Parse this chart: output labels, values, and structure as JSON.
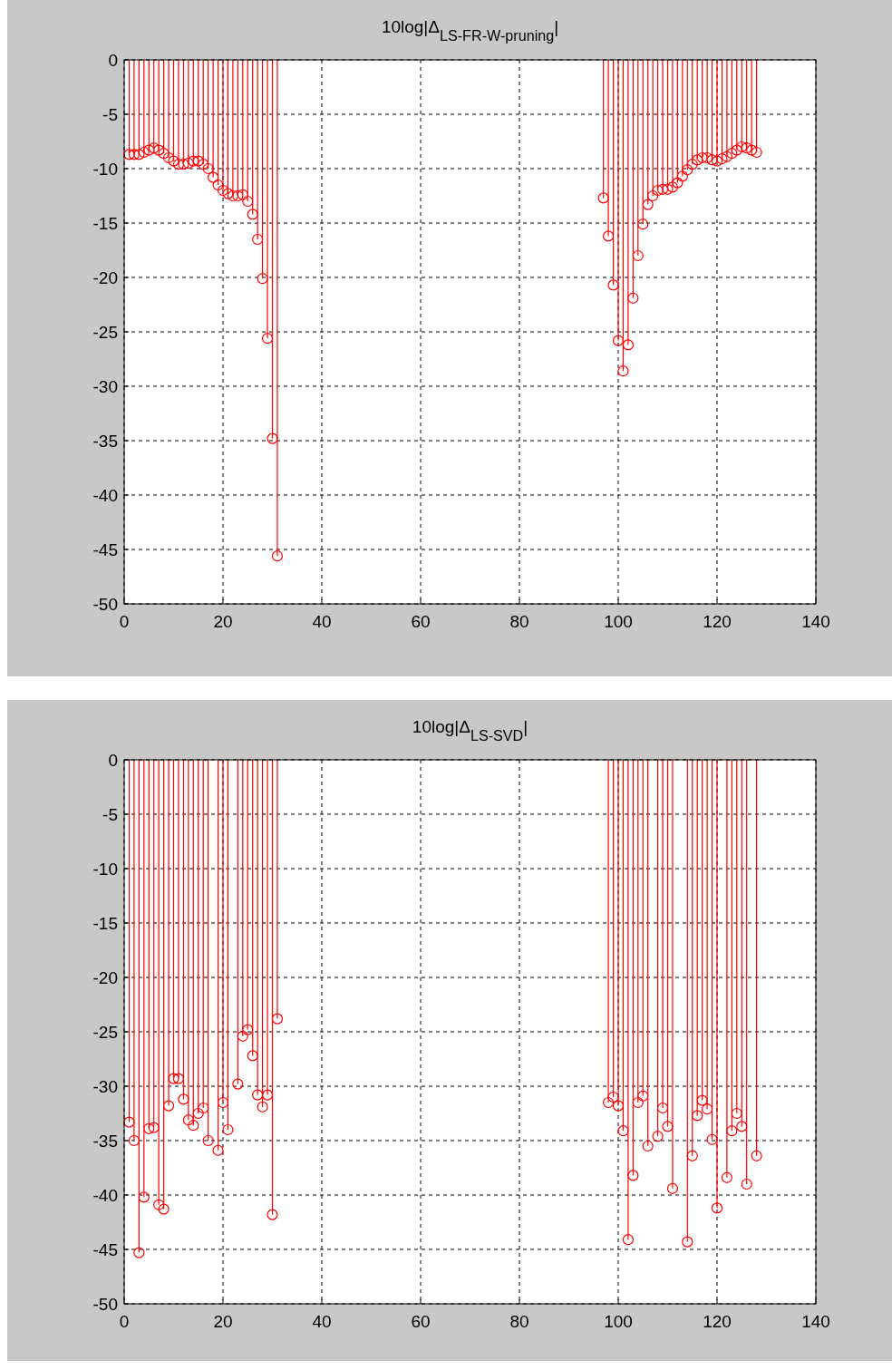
{
  "chart_data": [
    {
      "type": "lollipop",
      "title": "10log|Δ$_{LS-FR-W-pruning}$|",
      "x": [
        1,
        2,
        3,
        4,
        5,
        6,
        7,
        8,
        9,
        10,
        11,
        12,
        13,
        14,
        15,
        16,
        17,
        18,
        19,
        20,
        21,
        22,
        23,
        24,
        25,
        26,
        27,
        28,
        29,
        30,
        31,
        97,
        98,
        99,
        100,
        101,
        102,
        103,
        104,
        105,
        106,
        107,
        108,
        109,
        110,
        111,
        112,
        113,
        114,
        115,
        116,
        117,
        118,
        119,
        120,
        121,
        122,
        123,
        124,
        125,
        126,
        127,
        128
      ],
      "series": [
        {
          "color": "#ff0000",
          "values": [
            -8.7,
            -8.7,
            -8.7,
            -8.5,
            -8.3,
            -8.1,
            -8.3,
            -8.6,
            -9.0,
            -9.3,
            -9.6,
            -9.6,
            -9.5,
            -9.3,
            -9.3,
            -9.6,
            -10.0,
            -10.8,
            -11.5,
            -12.0,
            -12.3,
            -12.5,
            -12.5,
            -12.4,
            -13.0,
            -14.2,
            -16.5,
            -20.1,
            -25.6,
            -34.8,
            -45.6,
            -12.7,
            -16.2,
            -20.7,
            -25.8,
            -28.6,
            -26.2,
            -21.9,
            -18.0,
            -15.1,
            -13.3,
            -12.5,
            -12.0,
            -11.9,
            -11.9,
            -11.7,
            -11.3,
            -10.7,
            -10.1,
            -9.6,
            -9.2,
            -9.0,
            -9.0,
            -9.2,
            -9.3,
            -9.1,
            -8.9,
            -8.6,
            -8.3,
            -8.0,
            -8.1,
            -8.3,
            -8.5
          ]
        }
      ],
      "xlim": [
        0,
        140
      ],
      "xticks": [
        0,
        20,
        40,
        60,
        80,
        100,
        120,
        140
      ],
      "ylim": [
        -50,
        0
      ],
      "yticks": [
        -50,
        -45,
        -40,
        -35,
        -30,
        -25,
        -20,
        -15,
        -10,
        -5,
        0
      ],
      "grid": true,
      "marker": "circle"
    },
    {
      "type": "lollipop",
      "title": "10log|Δ$_{LS-SVD}$|",
      "x": [
        1,
        2,
        3,
        4,
        5,
        6,
        7,
        8,
        9,
        10,
        11,
        12,
        13,
        14,
        15,
        16,
        17,
        19,
        20,
        21,
        23,
        24,
        25,
        26,
        27,
        28,
        29,
        30,
        31,
        98,
        99,
        100,
        101,
        102,
        103,
        104,
        105,
        106,
        108,
        109,
        110,
        111,
        114,
        115,
        116,
        117,
        118,
        119,
        120,
        122,
        123,
        124,
        125,
        126,
        128
      ],
      "series": [
        {
          "color": "#ff0000",
          "values": [
            -33.3,
            -35.0,
            -45.3,
            -40.2,
            -33.9,
            -33.8,
            -40.9,
            -41.3,
            -31.8,
            -29.3,
            -29.3,
            -31.2,
            -33.1,
            -33.6,
            -32.5,
            -32.0,
            -35.0,
            -35.9,
            -31.5,
            -34.0,
            -29.8,
            -25.4,
            -24.8,
            -27.2,
            -30.8,
            -31.9,
            -30.8,
            -41.8,
            -23.8,
            -31.5,
            -31.0,
            -31.8,
            -34.1,
            -44.1,
            -38.2,
            -31.5,
            -30.9,
            -35.5,
            -34.6,
            -32.0,
            -33.7,
            -39.4,
            -44.3,
            -36.4,
            -32.7,
            -31.3,
            -32.1,
            -34.9,
            -41.2,
            -38.4,
            -34.1,
            -32.5,
            -33.7,
            -39.0,
            -36.4
          ]
        }
      ],
      "xlim": [
        0,
        140
      ],
      "xticks": [
        0,
        20,
        40,
        60,
        80,
        100,
        120,
        140
      ],
      "ylim": [
        -50,
        0
      ],
      "yticks": [
        -50,
        -45,
        -40,
        -35,
        -30,
        -25,
        -20,
        -15,
        -10,
        -5,
        0
      ],
      "grid": true,
      "marker": "circle"
    }
  ]
}
